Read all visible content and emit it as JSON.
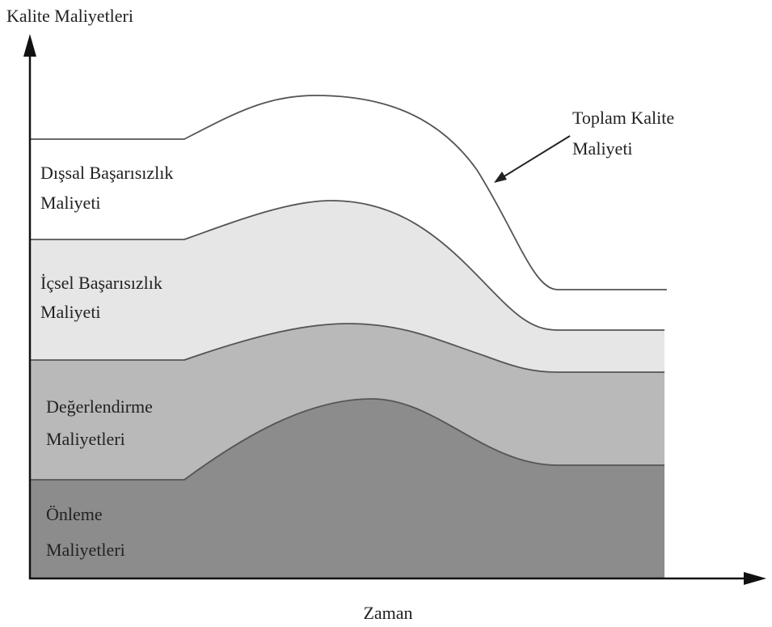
{
  "y_axis_label": "Kalite Maliyetleri",
  "x_axis_label": "Zaman",
  "total_label": [
    "Toplam Kalite",
    "Maliyeti"
  ],
  "layers": [
    {
      "label": [
        "Dışsal Başarısızlık",
        "Maliyeti"
      ]
    },
    {
      "label": [
        "İçsel Başarısızlık",
        "Maliyeti"
      ]
    },
    {
      "label": [
        "Değerlendirme",
        "Maliyetleri"
      ]
    },
    {
      "label": [
        "Önleme",
        "Maliyetleri"
      ]
    }
  ]
}
